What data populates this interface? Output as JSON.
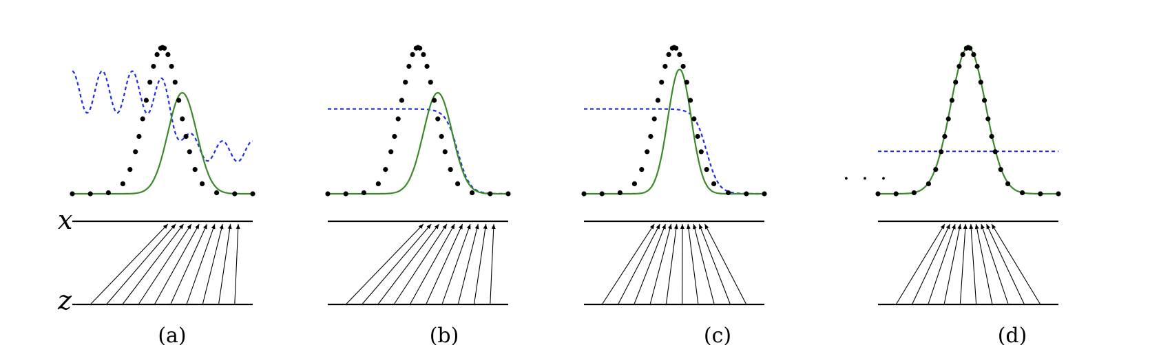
{
  "figure": {
    "axis_labels": {
      "x": "x",
      "z": "z"
    },
    "ellipsis": "· · ·",
    "panels": [
      {
        "caption": "(a)",
        "discriminator": "oscillating",
        "generator_shift": 0.55,
        "generator_width": 0.75
      },
      {
        "caption": "(b)",
        "discriminator": "sigmoid",
        "generator_shift": 0.55,
        "generator_width": 0.75
      },
      {
        "caption": "(c)",
        "discriminator": "sigmoid",
        "generator_shift": 0.15,
        "generator_width": 0.6
      },
      {
        "caption": "(d)",
        "discriminator": "constant-half",
        "generator_shift": 0.0,
        "generator_width": 1.0
      }
    ]
  },
  "colors": {
    "data_points": "#000000",
    "generator_curve": "#3a8a2a",
    "discriminator_curve": "#1f2fe0",
    "axis_lines": "#000000"
  }
}
